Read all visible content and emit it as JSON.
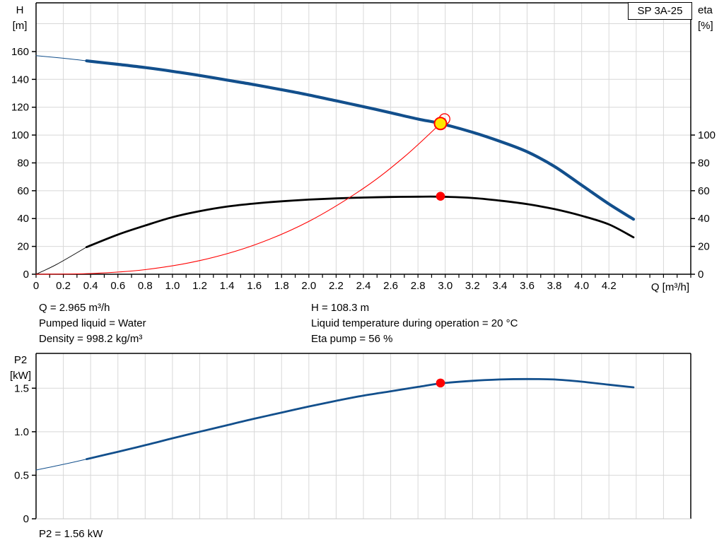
{
  "pump_type_badge": "SP 3A-25",
  "colors": {
    "curve_blue": "#124f8c",
    "curve_black": "#000000",
    "curve_red": "#ff0000",
    "marker_yellow": "#ffe600",
    "marker_red": "#ff0000",
    "grid": "#d8d8d8",
    "axis": "#000000",
    "light_border": "#c9c9c9",
    "background": "#ffffff"
  },
  "labels": {
    "h": [
      "H",
      "[m]"
    ],
    "eta": [
      "eta",
      "[%]"
    ],
    "p2": [
      "P2",
      "[kW]"
    ],
    "q": "Q [m³/h]"
  },
  "annotations": {
    "left": [
      "Q = 2.965 m³/h",
      "Pumped liquid = Water",
      "Density = 998.2 kg/m³"
    ],
    "right": [
      "H = 108.3 m",
      "Liquid temperature during operation = 20 °C",
      "Eta pump = 56 %"
    ],
    "bottom": [
      "P2 = 1.56 kW"
    ]
  },
  "chart_data": [
    {
      "id": "hq-chart",
      "type": "line",
      "title": "SP 3A-25",
      "xlabel": "Q [m³/h]",
      "ylabel": "H [m]",
      "y2label": "eta [%]",
      "x_range": [
        0,
        4.8
      ],
      "x_tick_step": 0.1,
      "x_label_step": 0.2,
      "x_label_max": 4.2,
      "x_label_decimals": 1,
      "x_grid_step": 0.2,
      "y_range": [
        0,
        195
      ],
      "y_ticks": [
        0,
        20,
        40,
        60,
        80,
        100,
        120,
        140,
        160
      ],
      "y_tick_decimals": 0,
      "y_gridlines": [
        20,
        40,
        60,
        80,
        100,
        120,
        140,
        160,
        180
      ],
      "y2_ticks": [
        0,
        20,
        40,
        60,
        80,
        100
      ],
      "grid": true,
      "legend": false,
      "series": [
        {
          "name": "pump-head-curve",
          "axis": "y",
          "color": "#124f8c",
          "width": 4.2,
          "thin_width": 1,
          "thin_until": 0.37,
          "points": [
            [
              0,
              157
            ],
            [
              0.2,
              155.2
            ],
            [
              0.37,
              153.3
            ],
            [
              0.6,
              150.8
            ],
            [
              0.8,
              148.5
            ],
            [
              1,
              145.8
            ],
            [
              1.2,
              142.8
            ],
            [
              1.4,
              139.5
            ],
            [
              1.6,
              136.2
            ],
            [
              1.8,
              132.6
            ],
            [
              2,
              128.8
            ],
            [
              2.2,
              124.6
            ],
            [
              2.4,
              120.4
            ],
            [
              2.6,
              116
            ],
            [
              2.8,
              111.5
            ],
            [
              2.965,
              108.3
            ],
            [
              3.2,
              102
            ],
            [
              3.4,
              95.5
            ],
            [
              3.6,
              88
            ],
            [
              3.8,
              77.5
            ],
            [
              4,
              64
            ],
            [
              4.2,
              50.5
            ],
            [
              4.38,
              39.5
            ]
          ]
        },
        {
          "name": "efficiency-curve",
          "axis": "y2",
          "color": "#000000",
          "width": 2.8,
          "thin_width": 0.9,
          "thin_until": 0.37,
          "points": [
            [
              0,
              0
            ],
            [
              0.15,
              7
            ],
            [
              0.37,
              19.5
            ],
            [
              0.6,
              28.5
            ],
            [
              0.8,
              35
            ],
            [
              1,
              41
            ],
            [
              1.2,
              45.3
            ],
            [
              1.4,
              48.6
            ],
            [
              1.6,
              50.8
            ],
            [
              1.8,
              52.4
            ],
            [
              2,
              53.6
            ],
            [
              2.2,
              54.5
            ],
            [
              2.4,
              55.1
            ],
            [
              2.6,
              55.5
            ],
            [
              2.8,
              55.7
            ],
            [
              2.965,
              55.7
            ],
            [
              3.2,
              54.8
            ],
            [
              3.4,
              52.9
            ],
            [
              3.6,
              50.4
            ],
            [
              3.8,
              46.8
            ],
            [
              4,
              42
            ],
            [
              4.2,
              35.8
            ],
            [
              4.38,
              26.5
            ]
          ]
        },
        {
          "name": "system-curve",
          "axis": "y",
          "color": "#ff0000",
          "width": 1.1,
          "points": [
            [
              0,
              0
            ],
            [
              0.4,
              0.5
            ],
            [
              0.8,
              3.3
            ],
            [
              1.2,
              9.8
            ],
            [
              1.6,
              21
            ],
            [
              2,
              38
            ],
            [
              2.4,
              61.7
            ],
            [
              2.7,
              84.4
            ],
            [
              2.965,
              108.3
            ],
            [
              3,
              111.7
            ]
          ]
        }
      ],
      "markers": [
        {
          "name": "requested-duty-point",
          "x": 2.995,
          "y": 111.5,
          "r": 7.5,
          "fill": "none",
          "stroke": "#ff0000",
          "stroke_width": 1.3
        },
        {
          "name": "duty-point",
          "x": 2.965,
          "y": 108.3,
          "r": 8.5,
          "fill": "#ffe600",
          "stroke": "#ff0000",
          "stroke_width": 2
        },
        {
          "name": "efficiency-point",
          "x": 2.965,
          "y": 56,
          "r": 6.3,
          "fill": "#ff0000",
          "stroke": "none",
          "stroke_width": 0
        }
      ],
      "duty_values": {
        "Q_m3h": 2.965,
        "H_m": 108.3,
        "eta_pct": 56
      }
    },
    {
      "id": "p2-chart",
      "type": "line",
      "title": "",
      "xlabel": "",
      "ylabel": "P2 [kW]",
      "x_range": [
        0,
        4.8
      ],
      "x_tick_step": 0,
      "x_grid_step": 0.2,
      "y_range": [
        0,
        1.9
      ],
      "y_ticks": [
        0,
        0.5,
        1,
        1.5
      ],
      "y_tick_decimals": 1,
      "y_gridlines": [
        0.5,
        1,
        1.5
      ],
      "y2_ticks": [],
      "grid": true,
      "legend": false,
      "light_bottom_border": true,
      "series": [
        {
          "name": "p2-curve",
          "axis": "y",
          "color": "#124f8c",
          "width": 2.8,
          "thin_width": 1,
          "thin_until": 0.37,
          "points": [
            [
              0,
              0.56
            ],
            [
              0.2,
              0.625
            ],
            [
              0.37,
              0.685
            ],
            [
              0.6,
              0.77
            ],
            [
              0.8,
              0.845
            ],
            [
              1,
              0.925
            ],
            [
              1.2,
              1
            ],
            [
              1.4,
              1.075
            ],
            [
              1.6,
              1.15
            ],
            [
              1.8,
              1.22
            ],
            [
              2,
              1.29
            ],
            [
              2.2,
              1.355
            ],
            [
              2.4,
              1.415
            ],
            [
              2.6,
              1.465
            ],
            [
              2.8,
              1.515
            ],
            [
              2.965,
              1.555
            ],
            [
              3.2,
              1.585
            ],
            [
              3.4,
              1.6
            ],
            [
              3.6,
              1.605
            ],
            [
              3.8,
              1.6
            ],
            [
              4,
              1.575
            ],
            [
              4.2,
              1.54
            ],
            [
              4.38,
              1.51
            ]
          ]
        }
      ],
      "markers": [
        {
          "name": "p2-point",
          "x": 2.965,
          "y": 1.56,
          "r": 6.3,
          "fill": "#ff0000",
          "stroke": "none",
          "stroke_width": 0
        }
      ],
      "duty_values": {
        "P2_kW": 1.56
      }
    }
  ]
}
